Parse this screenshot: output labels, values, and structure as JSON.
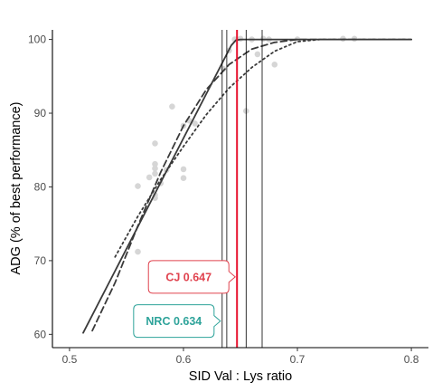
{
  "chart_data": {
    "type": "scatter",
    "xlabel": "SID Val : Lys ratio",
    "ylabel": "ADG (% of best performance)",
    "xlim": [
      0.485,
      0.815
    ],
    "ylim": [
      58.2,
      101.3
    ],
    "xticks": [
      0.5,
      0.6,
      0.7,
      0.8
    ],
    "yticks": [
      60,
      70,
      80,
      90,
      100
    ],
    "grid": false,
    "colors": {
      "points": "#d6d6d6",
      "lines": "#3a3a3a",
      "cj_line": "#e8112d",
      "cj_label": "#e0434f",
      "nrc_label": "#2ea39a",
      "ref_lines": "#000000"
    },
    "points": [
      {
        "x": 0.56,
        "y": 71.2
      },
      {
        "x": 0.56,
        "y": 80.1
      },
      {
        "x": 0.57,
        "y": 81.3
      },
      {
        "x": 0.575,
        "y": 78.9
      },
      {
        "x": 0.575,
        "y": 78.5
      },
      {
        "x": 0.575,
        "y": 81.8
      },
      {
        "x": 0.575,
        "y": 82.5
      },
      {
        "x": 0.575,
        "y": 83.1
      },
      {
        "x": 0.575,
        "y": 85.9
      },
      {
        "x": 0.58,
        "y": 80.5
      },
      {
        "x": 0.585,
        "y": 82.3
      },
      {
        "x": 0.59,
        "y": 90.9
      },
      {
        "x": 0.6,
        "y": 88.3
      },
      {
        "x": 0.6,
        "y": 82.4
      },
      {
        "x": 0.6,
        "y": 81.2
      },
      {
        "x": 0.605,
        "y": 89.0
      },
      {
        "x": 0.61,
        "y": 88.6
      },
      {
        "x": 0.635,
        "y": 96.0
      },
      {
        "x": 0.64,
        "y": 98.5
      },
      {
        "x": 0.645,
        "y": 100.0
      },
      {
        "x": 0.65,
        "y": 100.1
      },
      {
        "x": 0.655,
        "y": 90.3
      },
      {
        "x": 0.66,
        "y": 100.0
      },
      {
        "x": 0.665,
        "y": 98.0
      },
      {
        "x": 0.67,
        "y": 100.1
      },
      {
        "x": 0.675,
        "y": 100.0
      },
      {
        "x": 0.68,
        "y": 96.6
      },
      {
        "x": 0.7,
        "y": 100.0
      },
      {
        "x": 0.74,
        "y": 100.1
      },
      {
        "x": 0.75,
        "y": 100.1
      }
    ],
    "series": [
      {
        "style": "solid",
        "x": [
          0.512,
          0.642,
          0.646,
          0.65,
          0.8
        ],
        "y": [
          60.2,
          99.2,
          99.9,
          100.0,
          100.0
        ]
      },
      {
        "style": "dashed",
        "x": [
          0.52,
          0.54,
          0.56,
          0.58,
          0.6,
          0.62,
          0.64,
          0.66,
          0.68,
          0.7,
          0.72,
          0.75,
          0.8
        ],
        "y": [
          60.5,
          67.0,
          74.7,
          82.0,
          88.3,
          93.2,
          96.6,
          98.7,
          99.6,
          100.0,
          100.0,
          100.0,
          100.0
        ]
      },
      {
        "style": "dotted",
        "x": [
          0.54,
          0.56,
          0.58,
          0.6,
          0.62,
          0.64,
          0.66,
          0.68,
          0.7,
          0.72,
          0.75,
          0.8
        ],
        "y": [
          70.5,
          76.0,
          81.0,
          85.5,
          89.8,
          93.4,
          96.2,
          98.4,
          99.7,
          100.0,
          100.0,
          100.0
        ]
      }
    ],
    "reference_lines": [
      0.634,
      0.638,
      0.647,
      0.655,
      0.669
    ],
    "cj_line": 0.647,
    "annotations": [
      {
        "text": "CJ 0.647",
        "x": 0.647,
        "y": 67.8,
        "color": "cj"
      },
      {
        "text": "NRC 0.634",
        "x": 0.634,
        "y": 61.8,
        "color": "nrc"
      }
    ]
  }
}
